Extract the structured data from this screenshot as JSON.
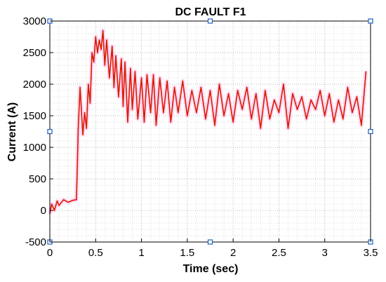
{
  "chart_data": {
    "type": "line",
    "title": "DC FAULT F1",
    "xlabel": "Time (sec)",
    "ylabel": "Current (A)",
    "xlim": [
      0,
      3.5
    ],
    "ylim": [
      -500,
      3000
    ],
    "xticks": [
      0,
      0.5,
      1,
      1.5,
      2,
      2.5,
      3,
      3.5
    ],
    "xtick_labels": [
      "0",
      "0.5",
      "1",
      "1.5",
      "2",
      "2.5",
      "3",
      "3.5"
    ],
    "yticks": [
      -500,
      0,
      500,
      1000,
      1500,
      2000,
      2500,
      3000
    ],
    "ytick_labels": [
      "-500",
      "0",
      "500",
      "1000",
      "1500",
      "2000",
      "2500",
      "3000"
    ],
    "grid": true,
    "grid_style": "dotted",
    "legend": "none",
    "series": [
      {
        "color": "#ff0000",
        "x": [
          0,
          0.02,
          0.05,
          0.08,
          0.1,
          0.15,
          0.2,
          0.25,
          0.29,
          0.3,
          0.31,
          0.33,
          0.36,
          0.38,
          0.4,
          0.42,
          0.44,
          0.46,
          0.48,
          0.5,
          0.52,
          0.54,
          0.56,
          0.58,
          0.6,
          0.62,
          0.65,
          0.68,
          0.7,
          0.72,
          0.75,
          0.78,
          0.8,
          0.82,
          0.85,
          0.88,
          0.9,
          0.93,
          0.96,
          1.0,
          1.03,
          1.06,
          1.1,
          1.13,
          1.16,
          1.2,
          1.24,
          1.28,
          1.32,
          1.36,
          1.4,
          1.45,
          1.5,
          1.55,
          1.6,
          1.65,
          1.7,
          1.75,
          1.8,
          1.85,
          1.9,
          1.95,
          2.0,
          2.05,
          2.1,
          2.15,
          2.2,
          2.25,
          2.3,
          2.35,
          2.4,
          2.45,
          2.5,
          2.55,
          2.6,
          2.65,
          2.7,
          2.75,
          2.8,
          2.85,
          2.9,
          2.95,
          3.0,
          3.05,
          3.1,
          3.15,
          3.2,
          3.25,
          3.3,
          3.35,
          3.4,
          3.45
        ],
        "values": [
          -50,
          100,
          0,
          150,
          80,
          170,
          130,
          160,
          170,
          700,
          1300,
          1950,
          1200,
          1550,
          1300,
          2000,
          1700,
          2500,
          2350,
          2750,
          2500,
          2700,
          2550,
          2850,
          2300,
          2700,
          2100,
          2600,
          1950,
          2450,
          1800,
          2400,
          1650,
          2350,
          1400,
          2250,
          1600,
          2200,
          1450,
          2100,
          1400,
          2150,
          1550,
          2150,
          1350,
          2100,
          1550,
          2050,
          1400,
          1950,
          1550,
          2050,
          1500,
          1900,
          1550,
          1950,
          1450,
          1900,
          1350,
          2000,
          1500,
          1850,
          1400,
          1900,
          1600,
          1950,
          1450,
          1850,
          1300,
          1900,
          1450,
          1750,
          1550,
          2000,
          1300,
          1850,
          1600,
          1800,
          1450,
          1750,
          1600,
          1900,
          1500,
          1850,
          1400,
          1750,
          1450,
          1950,
          1550,
          1800,
          1350,
          2200
        ]
      }
    ]
  }
}
